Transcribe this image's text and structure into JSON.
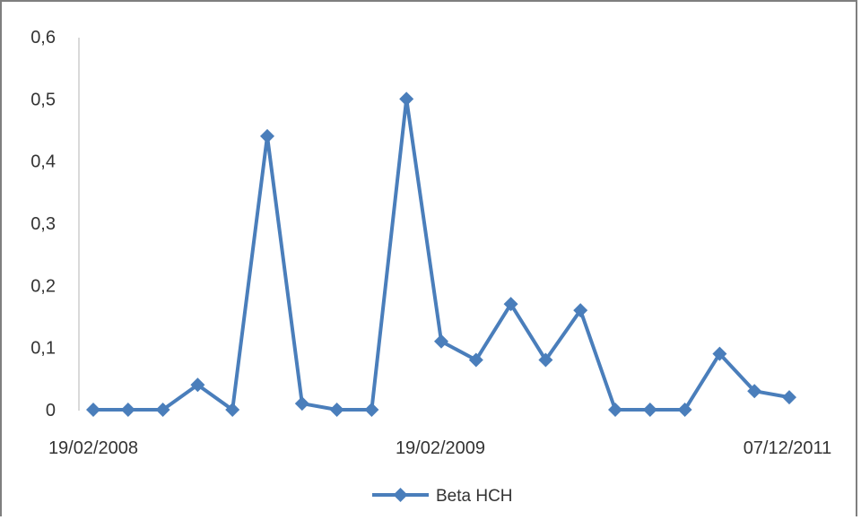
{
  "chart_data": {
    "type": "line",
    "title": "",
    "xlabel": "",
    "ylabel": "",
    "ylim": [
      0,
      0.6
    ],
    "y_ticks": [
      "0",
      "0,1",
      "0,2",
      "0,3",
      "0,4",
      "0,5",
      "0,6"
    ],
    "x_tick_labels": [
      "19/02/2008",
      "19/02/2009",
      "07/12/2011"
    ],
    "grid": false,
    "legend_position": "bottom",
    "series": [
      {
        "name": "Beta HCH",
        "color": "#4a7ebb",
        "values": [
          0,
          0,
          0,
          0.04,
          0,
          0.44,
          0.01,
          0,
          0,
          0.5,
          0.11,
          0.08,
          0.17,
          0.08,
          0.16,
          0,
          0,
          0,
          0.09,
          0.03,
          0.02
        ]
      }
    ]
  }
}
